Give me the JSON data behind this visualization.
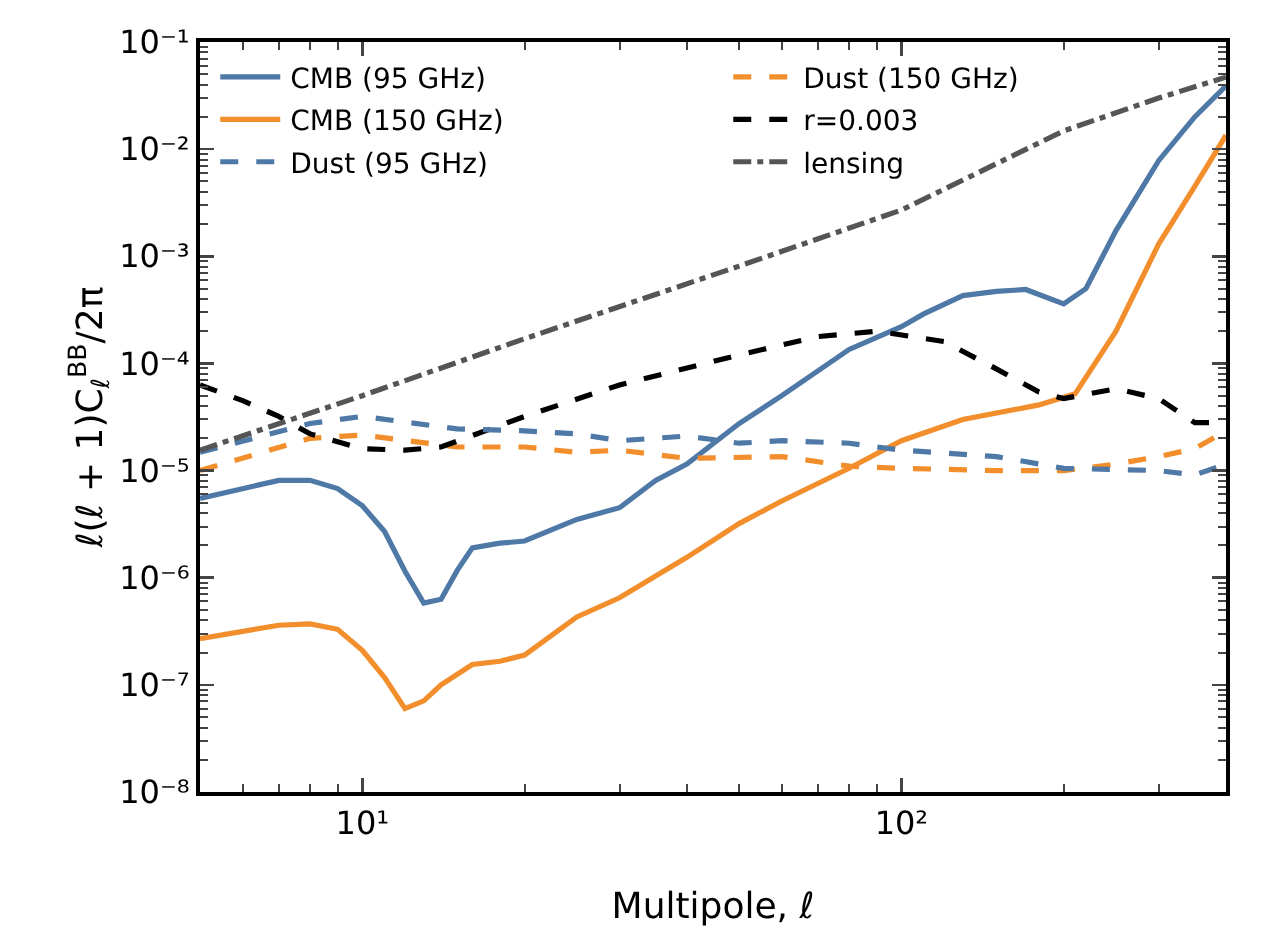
{
  "chart_data": {
    "type": "line",
    "xlabel": "Multipole, ℓ",
    "ylabel": "ℓ(ℓ + 1)C$_{ℓ}$$^{BB}$/2π",
    "log": "xy",
    "grid": false,
    "legend": "top left",
    "xlim": [
      5,
      400
    ],
    "ylim": [
      1e-08,
      0.1
    ],
    "xticks": [
      {
        "value": 10,
        "label": "10¹"
      },
      {
        "value": 100,
        "label": "10²"
      }
    ],
    "yticks": [
      {
        "value": 1e-08,
        "label": "10⁻⁸"
      },
      {
        "value": 1e-07,
        "label": "10⁻⁷"
      },
      {
        "value": 1e-06,
        "label": "10⁻⁶"
      },
      {
        "value": 1e-05,
        "label": "10⁻⁵"
      },
      {
        "value": 0.0001,
        "label": "10⁻⁴"
      },
      {
        "value": 0.001,
        "label": "10⁻³"
      },
      {
        "value": 0.01,
        "label": "10⁻²"
      },
      {
        "value": 0.1,
        "label": "10⁻¹"
      }
    ],
    "series": [
      {
        "name": "CMB (95 GHz)",
        "color": "#4e79a7",
        "line_style": "solid",
        "x": [
          5,
          7,
          8,
          9,
          10,
          11,
          12,
          13,
          14,
          15,
          16,
          18,
          20,
          25,
          30,
          35,
          40,
          50,
          60,
          80,
          100,
          110,
          130,
          150,
          170,
          200,
          220,
          250,
          300,
          350,
          400
        ],
        "values": [
          5.5e-06,
          8.1e-06,
          8.1e-06,
          6.8e-06,
          4.7e-06,
          2.7e-06,
          1.15e-06,
          5.8e-07,
          6.3e-07,
          1.17e-06,
          1.9e-06,
          2.1e-06,
          2.2e-06,
          3.5e-06,
          4.5e-06,
          8.1e-06,
          1.15e-05,
          2.75e-05,
          5e-05,
          0.000135,
          0.00022,
          0.00029,
          0.00043,
          0.00047,
          0.00049,
          0.00036,
          0.0005,
          0.00174,
          0.0078,
          0.02,
          0.039
        ]
      },
      {
        "name": "CMB (150 GHz)",
        "color": "#f28e2b",
        "line_style": "solid",
        "x": [
          5,
          7,
          8,
          9,
          10,
          11,
          12,
          13,
          14,
          16,
          18,
          20,
          25,
          30,
          40,
          50,
          60,
          80,
          100,
          130,
          180,
          210,
          250,
          300,
          350,
          400
        ],
        "values": [
          2.7e-07,
          3.6e-07,
          3.7e-07,
          3.3e-07,
          2.1e-07,
          1.17e-07,
          6e-08,
          7.1e-08,
          1e-07,
          1.55e-07,
          1.66e-07,
          1.9e-07,
          4.3e-07,
          6.5e-07,
          1.55e-06,
          3.2e-06,
          5.2e-06,
          1.05e-05,
          1.9e-05,
          3e-05,
          4.1e-05,
          5.2e-05,
          0.0002,
          0.0013,
          0.0045,
          0.0135
        ]
      },
      {
        "name": "Dust (95 GHz)",
        "color": "#4e79a7",
        "line_style": "dashed",
        "x": [
          5,
          8,
          10,
          15,
          20,
          25,
          30,
          40,
          50,
          60,
          80,
          100,
          150,
          200,
          300,
          350,
          400
        ],
        "values": [
          1.48e-05,
          2.75e-05,
          3.2e-05,
          2.45e-05,
          2.35e-05,
          2.2e-05,
          1.9e-05,
          2.1e-05,
          1.8e-05,
          1.9e-05,
          1.8e-05,
          1.55e-05,
          1.35e-05,
          1.05e-05,
          1e-05,
          9.1e-06,
          1.15e-05
        ]
      },
      {
        "name": "Dust (150 GHz)",
        "color": "#f28e2b",
        "line_style": "dashed",
        "x": [
          5,
          8,
          10,
          15,
          20,
          25,
          30,
          40,
          60,
          80,
          100,
          150,
          200,
          250,
          300,
          350,
          400
        ],
        "values": [
          1e-05,
          2e-05,
          2.15e-05,
          1.66e-05,
          1.66e-05,
          1.48e-05,
          1.55e-05,
          1.3e-05,
          1.35e-05,
          1.1e-05,
          1.05e-05,
          1e-05,
          1e-05,
          1.15e-05,
          1.35e-05,
          1.6e-05,
          2.35e-05
        ]
      },
      {
        "name": "r=0.003",
        "color": "#000000",
        "line_style": "dashed",
        "x": [
          5,
          6,
          7,
          8,
          10,
          12,
          14,
          20,
          30,
          50,
          70,
          90,
          120,
          150,
          180,
          200,
          250,
          300,
          350,
          400
        ],
        "values": [
          6.3e-05,
          4.5e-05,
          3.2e-05,
          2.2e-05,
          1.6e-05,
          1.55e-05,
          1.66e-05,
          3.2e-05,
          6.3e-05,
          0.00012,
          0.000178,
          0.0002,
          0.00016,
          8.9e-05,
          5.4e-05,
          4.7e-05,
          5.8e-05,
          4.7e-05,
          2.8e-05,
          2.8e-05
        ]
      },
      {
        "name": "lensing",
        "color": "#555555",
        "line_style": "dashdot",
        "x": [
          5,
          10,
          20,
          50,
          100,
          200,
          300,
          400
        ],
        "values": [
          1.55e-05,
          5e-05,
          0.00017,
          0.00081,
          0.0027,
          0.0148,
          0.03,
          0.047
        ]
      }
    ]
  }
}
